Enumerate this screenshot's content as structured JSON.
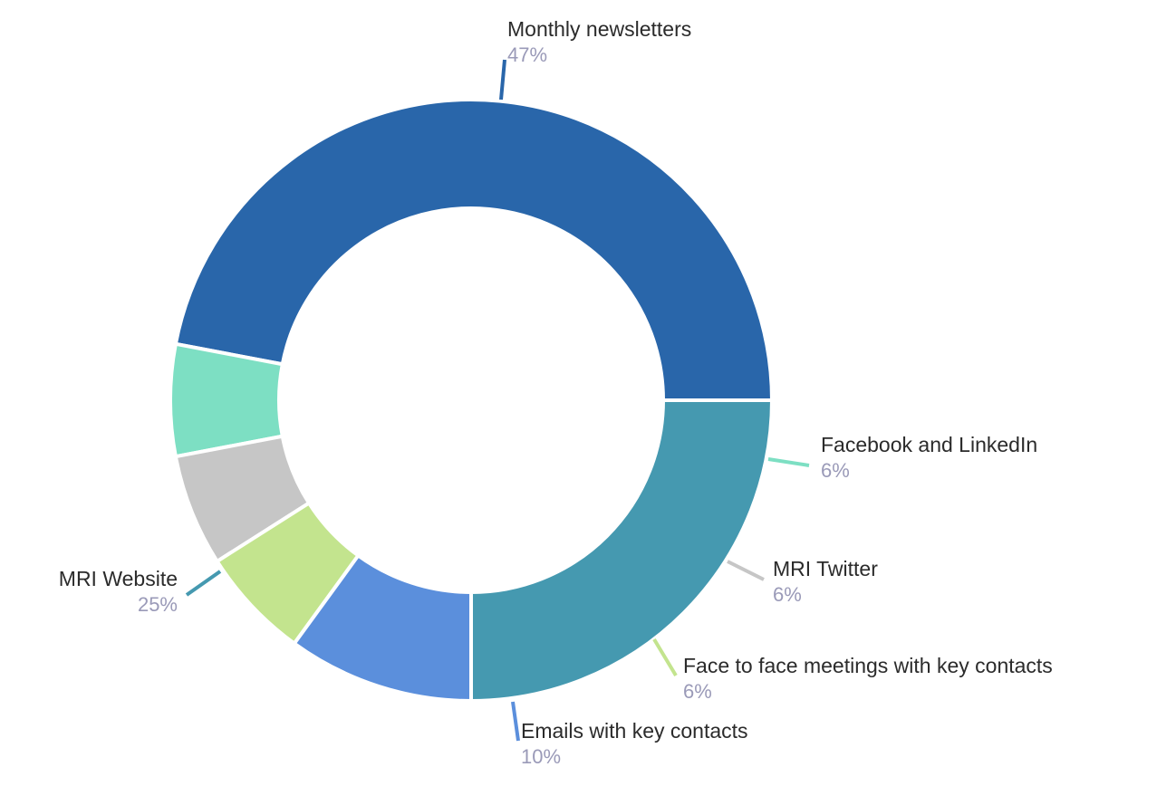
{
  "chart_data": {
    "type": "pie",
    "variant": "donut",
    "title": "",
    "legend": "none",
    "categories": [
      "Monthly newsletters",
      "Facebook and LinkedIn",
      "MRI Twitter",
      "Face to face meetings with key contacts",
      "Emails with key contacts",
      "MRI Website"
    ],
    "values": [
      47,
      6,
      6,
      6,
      10,
      25
    ],
    "value_labels": [
      "47%",
      "6%",
      "6%",
      "6%",
      "10%",
      "25%"
    ],
    "colors": [
      "#2966aa",
      "#7ddfc3",
      "#c6c6c6",
      "#c3e48e",
      "#5b8fdc",
      "#4599b0"
    ]
  }
}
